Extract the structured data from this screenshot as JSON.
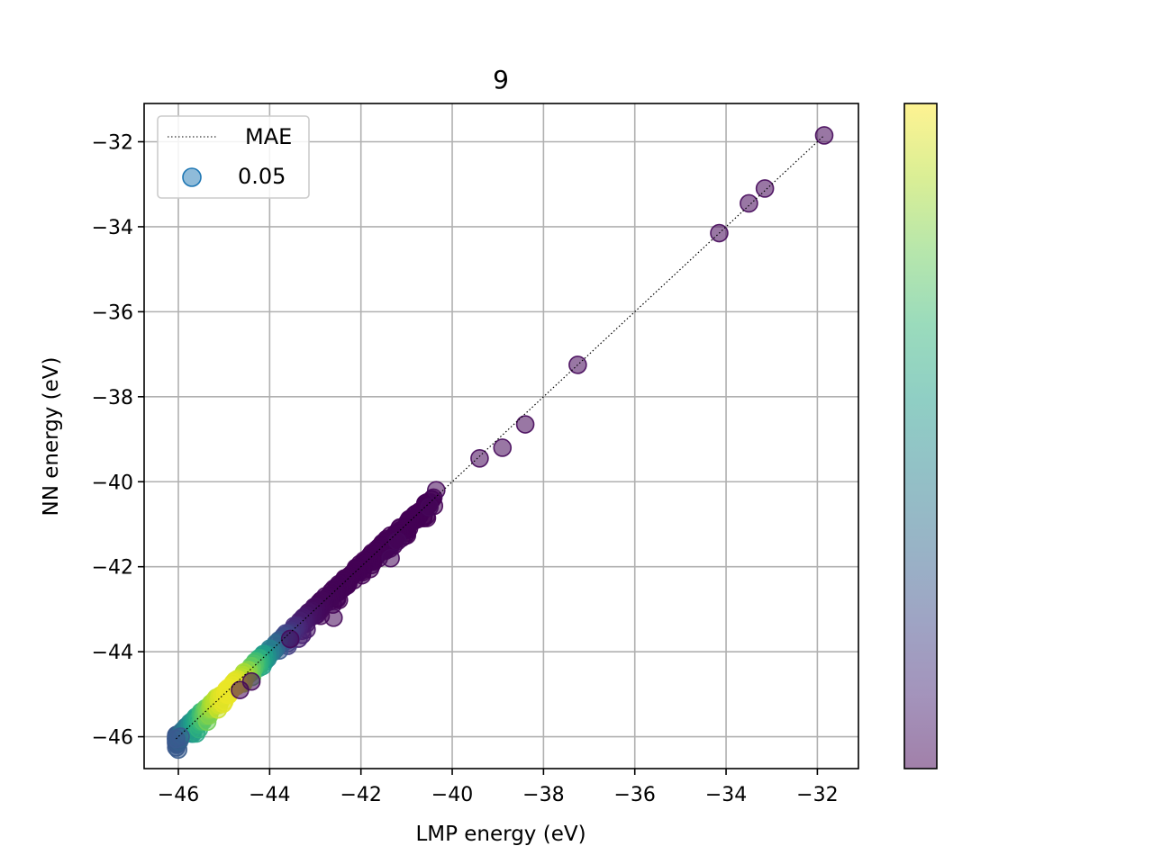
{
  "chart_data": {
    "type": "scatter",
    "title": "9",
    "xlabel": "LMP energy (eV)",
    "ylabel": "NN energy (eV)",
    "xlim": [
      -46.75,
      -31.1
    ],
    "ylim": [
      -46.75,
      -31.1
    ],
    "xticks": [
      -46,
      -44,
      -42,
      -40,
      -38,
      -36,
      -34,
      -32
    ],
    "yticks": [
      -46,
      -44,
      -42,
      -40,
      -38,
      -36,
      -34,
      -32
    ],
    "xtick_labels": [
      "−46",
      "−44",
      "−42",
      "−40",
      "−38",
      "−36",
      "−34",
      "−32"
    ],
    "ytick_labels": [
      "−46",
      "−44",
      "−42",
      "−40",
      "−38",
      "−36",
      "−34",
      "−32"
    ],
    "grid": true,
    "legend": {
      "placement": "top-left",
      "entries": [
        {
          "label": "MAE",
          "kind": "dotted-line",
          "color": "#000000"
        },
        {
          "label": "0.05",
          "kind": "marker",
          "color": "#1f77b4"
        }
      ]
    },
    "reference_line": {
      "style": "dotted",
      "color": "#000000",
      "from": [
        -46.05,
        -46.05
      ],
      "to": [
        -31.85,
        -31.85
      ]
    },
    "colorbar": {
      "colormap": "viridis",
      "alpha": 0.5,
      "stops": [
        "#440154",
        "#482878",
        "#3e4989",
        "#31688e",
        "#26828e",
        "#1f9e89",
        "#35b779",
        "#6ece58",
        "#b5de2b",
        "#fde725"
      ]
    },
    "density_band": {
      "x_start": -46.05,
      "x_end": -40.4,
      "density_peak_x": -44.9
    },
    "outliers": [
      {
        "x": -40.35,
        "y": -40.2
      },
      {
        "x": -40.5,
        "y": -40.6
      },
      {
        "x": -39.4,
        "y": -39.45
      },
      {
        "x": -38.9,
        "y": -39.2
      },
      {
        "x": -38.4,
        "y": -38.65
      },
      {
        "x": -37.25,
        "y": -37.25
      },
      {
        "x": -34.15,
        "y": -34.15
      },
      {
        "x": -33.5,
        "y": -33.45
      },
      {
        "x": -33.15,
        "y": -33.1
      },
      {
        "x": -31.85,
        "y": -31.85
      },
      {
        "x": -41.2,
        "y": -41.4
      },
      {
        "x": -41.35,
        "y": -41.8
      },
      {
        "x": -42.6,
        "y": -43.2
      },
      {
        "x": -43.55,
        "y": -43.7
      },
      {
        "x": -44.4,
        "y": -44.7
      },
      {
        "x": -44.65,
        "y": -44.9
      }
    ],
    "end_point": {
      "x": -46.05,
      "y": -46.05,
      "color": "#3b5a8f"
    }
  }
}
